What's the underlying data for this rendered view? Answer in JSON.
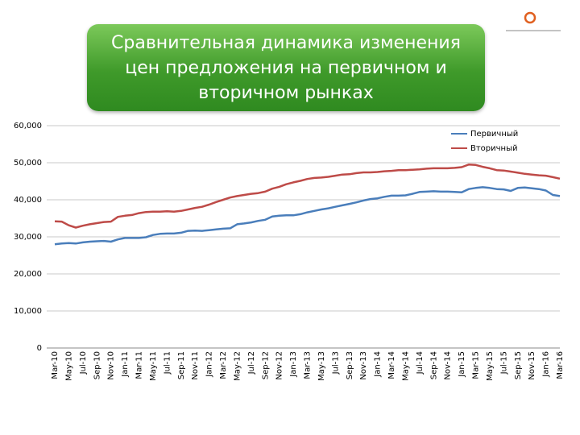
{
  "chart_data": {
    "type": "line",
    "title": "Сравнительная динамика изменения цен предложения на первичном и вторичном рынках",
    "categories": [
      "Mar-10",
      null,
      "May-10",
      null,
      "Jul-10",
      null,
      "Sep-10",
      null,
      "Nov-10",
      null,
      "Jan-11",
      null,
      "Mar-11",
      null,
      "May-11",
      null,
      "Jul-11",
      null,
      "Sep-11",
      null,
      "Nov-11",
      null,
      "Jan-12",
      null,
      "Mar-12",
      null,
      "May-12",
      null,
      "Jul-12",
      null,
      "Sep-12",
      null,
      "Nov-12",
      null,
      "Jan-13",
      null,
      "Mar-13",
      null,
      "May-13",
      null,
      "Jul-13",
      null,
      "Sep-13",
      null,
      "Nov-13",
      null,
      "Jan-14",
      null,
      "Mar-14",
      null,
      "May-14",
      null,
      "Jul-14",
      null,
      "Sep-14",
      null,
      "Nov-14",
      null,
      "Jan-15",
      null,
      "Mar-15",
      null,
      "May-15",
      null,
      "Jul-15",
      null,
      "Sep-15",
      null,
      "Nov-15",
      null,
      "Jan-16",
      null,
      "Mar-16"
    ],
    "series": [
      {
        "name": "Первичный",
        "color": "#4a7ebb",
        "values": [
          28000,
          28200,
          28300,
          28200,
          28500,
          28700,
          28800,
          28900,
          28700,
          29300,
          29700,
          29700,
          29700,
          29900,
          30500,
          30800,
          30900,
          30900,
          31100,
          31600,
          31700,
          31600,
          31800,
          32000,
          32200,
          32300,
          33400,
          33600,
          33900,
          34300,
          34600,
          35500,
          35700,
          35800,
          35800,
          36100,
          36600,
          37000,
          37400,
          37700,
          38100,
          38500,
          38900,
          39300,
          39800,
          40200,
          40400,
          40800,
          41100,
          41100,
          41200,
          41600,
          42100,
          42200,
          42300,
          42200,
          42200,
          42100,
          42000,
          42900,
          43200,
          43400,
          43200,
          42900,
          42800,
          42400,
          43200,
          43300,
          43100,
          42900,
          42500,
          41300,
          41000
        ]
      },
      {
        "name": "Вторичный",
        "color": "#be4b48",
        "values": [
          34200,
          34100,
          33100,
          32500,
          33000,
          33400,
          33700,
          34000,
          34100,
          35400,
          35700,
          35900,
          36400,
          36700,
          36800,
          36800,
          36900,
          36800,
          37000,
          37400,
          37800,
          38100,
          38700,
          39400,
          40000,
          40600,
          41000,
          41300,
          41600,
          41800,
          42200,
          43000,
          43500,
          44200,
          44700,
          45100,
          45600,
          45900,
          46000,
          46200,
          46500,
          46800,
          46900,
          47200,
          47400,
          47400,
          47500,
          47700,
          47800,
          48000,
          48000,
          48100,
          48200,
          48400,
          48500,
          48500,
          48500,
          48600,
          48800,
          49500,
          49400,
          48900,
          48500,
          48000,
          47900,
          47600,
          47300,
          47000,
          46800,
          46600,
          46500,
          46100,
          45700
        ]
      }
    ],
    "ylim": [
      0,
      60000
    ],
    "yticks": [
      0,
      {
        "value": 10000,
        "label": "10,000"
      },
      {
        "value": 20000,
        "label": "20,000"
      },
      {
        "value": 30000,
        "label": "30,000"
      },
      {
        "value": 40000,
        "label": "40,000"
      },
      {
        "value": 50000,
        "label": "50,000"
      },
      {
        "value": 60000,
        "label": "60,000"
      }
    ],
    "grid": true,
    "legend": "upper right"
  }
}
